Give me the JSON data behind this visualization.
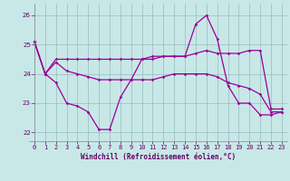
{
  "bg_color": "#c8e8e8",
  "line_color": "#990099",
  "grid_color": "#99bbbb",
  "xlabel": "Windchill (Refroidissement éolien,°C)",
  "ylim": [
    21.7,
    26.4
  ],
  "xlim": [
    -0.5,
    23.5
  ],
  "yticks": [
    22,
    23,
    24,
    25,
    26
  ],
  "xticks": [
    0,
    1,
    2,
    3,
    4,
    5,
    6,
    7,
    8,
    9,
    10,
    11,
    12,
    13,
    14,
    15,
    16,
    17,
    18,
    19,
    20,
    21,
    22,
    23
  ],
  "series": [
    [
      25.1,
      24.0,
      24.5,
      24.5,
      24.5,
      24.5,
      24.5,
      24.5,
      24.5,
      24.5,
      24.5,
      24.5,
      24.6,
      24.6,
      24.6,
      24.7,
      24.8,
      24.7,
      24.7,
      24.7,
      24.8,
      24.8,
      22.8,
      22.8
    ],
    [
      25.1,
      24.0,
      24.4,
      24.1,
      24.0,
      23.9,
      23.8,
      23.8,
      23.8,
      23.8,
      23.8,
      23.8,
      23.9,
      24.0,
      24.0,
      24.0,
      24.0,
      23.9,
      23.7,
      23.6,
      23.5,
      23.3,
      22.7,
      22.7
    ],
    [
      25.1,
      24.0,
      23.7,
      23.0,
      22.9,
      22.7,
      22.1,
      22.1,
      23.2,
      23.8,
      24.5,
      24.6,
      24.6,
      24.6,
      24.6,
      25.7,
      26.0,
      25.2,
      23.6,
      23.0,
      23.0,
      22.6,
      22.6,
      22.7
    ]
  ]
}
